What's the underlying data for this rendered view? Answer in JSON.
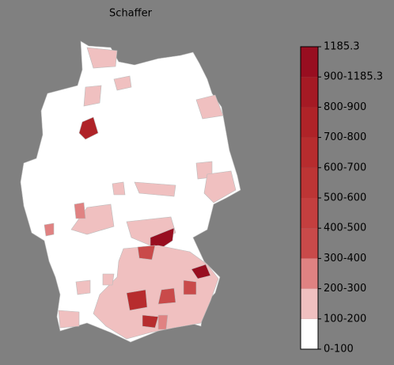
{
  "title": "Schaffer",
  "colorbar": {
    "labels": [
      "0-100",
      "100-200",
      "200-300",
      "300-400",
      "400-500",
      "500-600",
      "600-700",
      "700-800",
      "800-900",
      "900-1185.3",
      "1185.3"
    ],
    "colors": [
      "#ffffff",
      "#f0c0c0",
      "#e08282",
      "#c94a4a",
      "#c43f3f",
      "#bd3535",
      "#b72c2e",
      "#af2328",
      "#a51a24",
      "#980e20"
    ]
  }
}
